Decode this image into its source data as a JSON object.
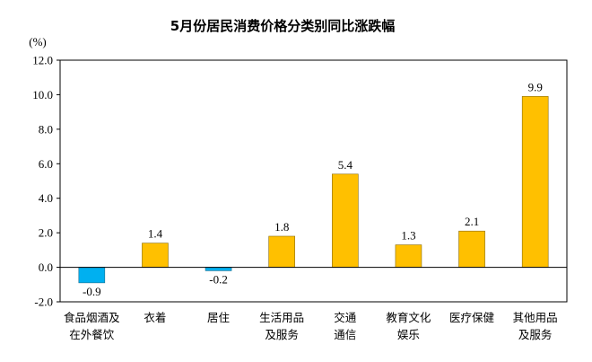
{
  "chart_data": {
    "type": "bar",
    "title": "5月份居民消费价格分类别同比涨跌幅",
    "unit_label": "(%)",
    "categories": [
      [
        "食品烟酒及",
        "在外餐饮"
      ],
      [
        "衣着"
      ],
      [
        "居住"
      ],
      [
        "生活用品",
        "及服务"
      ],
      [
        "交通",
        "通信"
      ],
      [
        "教育文化",
        "娱乐"
      ],
      [
        "医疗保健"
      ],
      [
        "其他用品",
        "及服务"
      ]
    ],
    "values": [
      -0.9,
      1.4,
      -0.2,
      1.8,
      5.4,
      1.3,
      2.1,
      9.9
    ],
    "value_labels": [
      "-0.9",
      "1.4",
      "-0.2",
      "1.8",
      "5.4",
      "1.3",
      "2.1",
      "9.9"
    ],
    "ylim": [
      -2.0,
      12.0
    ],
    "yticks": [
      "-2.0",
      "0.0",
      "2.0",
      "4.0",
      "6.0",
      "8.0",
      "10.0",
      "12.0"
    ],
    "grid": false,
    "colors": {
      "positive": "#FFC000",
      "negative": "#00B0F0",
      "bar_edge": "#8a6a00",
      "axis": "#000000"
    }
  }
}
